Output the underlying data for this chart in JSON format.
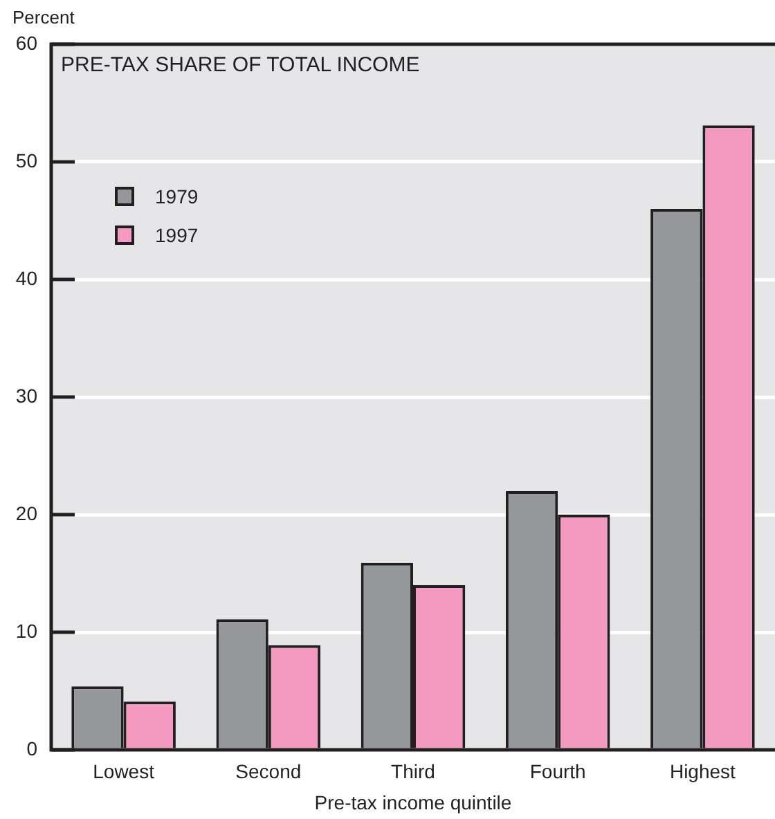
{
  "chart_data": {
    "type": "bar",
    "title": "PRE-TAX SHARE OF TOTAL INCOME",
    "ylabel": "Percent",
    "xlabel": "Pre-tax income quintile",
    "categories": [
      "Lowest",
      "Second",
      "Third",
      "Fourth",
      "Highest"
    ],
    "series": [
      {
        "name": "1979",
        "color": "#96979b",
        "values": [
          5.4,
          11.1,
          15.9,
          22.0,
          46.0
        ]
      },
      {
        "name": "1997",
        "color": "#f49ac1",
        "values": [
          4.1,
          8.9,
          14.0,
          20.0,
          53.1
        ]
      }
    ],
    "ylim": [
      0,
      60
    ],
    "yticks": [
      0,
      10,
      20,
      30,
      40,
      50,
      60
    ],
    "grid": "y",
    "legend": "top left"
  }
}
